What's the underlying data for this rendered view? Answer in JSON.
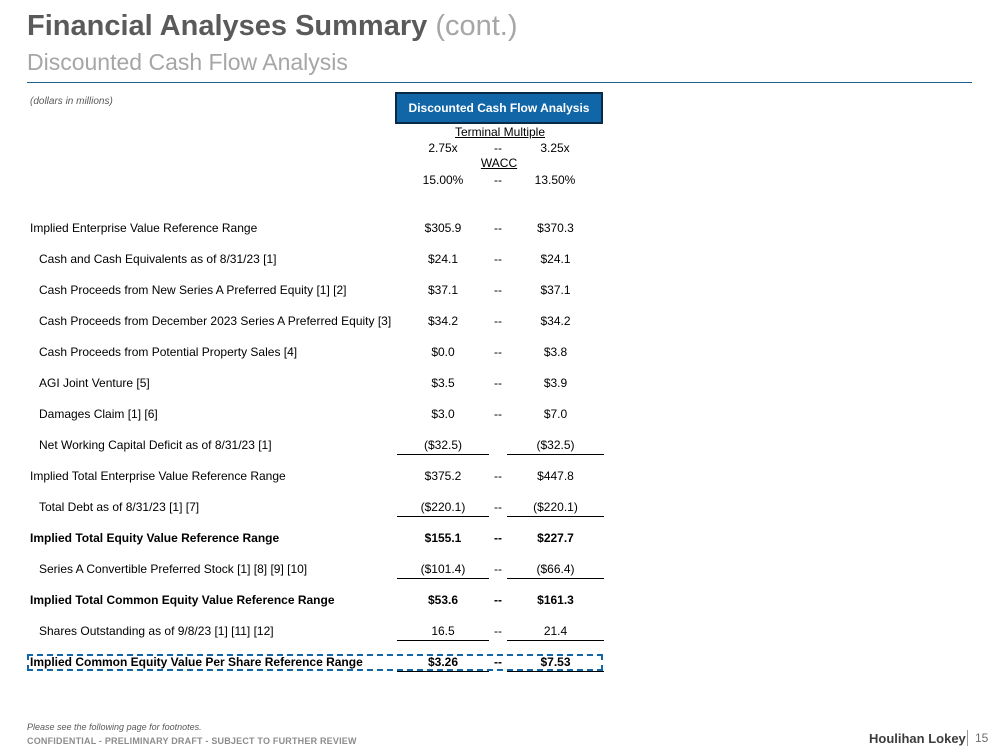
{
  "header": {
    "title": "Financial Analyses Summary",
    "title_suffix": "(cont.)",
    "subtitle": "Discounted Cash Flow Analysis"
  },
  "units_note": "(dollars in millions)",
  "dcf": {
    "header_label": "Discounted Cash Flow Analysis",
    "terminal_multiple_label": "Terminal Multiple",
    "terminal_multiple_low": "2.75x",
    "terminal_multiple_sep": "--",
    "terminal_multiple_high": "3.25x",
    "wacc_label": "WACC",
    "wacc_low": "15.00%",
    "wacc_sep": "--",
    "wacc_high": "13.50%"
  },
  "rows": [
    {
      "label": "Implied Enterprise Value Reference Range",
      "low": "$305.9",
      "sep": "--",
      "high": "$370.3"
    },
    {
      "label": "Cash and Cash Equivalents as of 8/31/23 [1]",
      "low": "$24.1",
      "sep": "--",
      "high": "$24.1"
    },
    {
      "label": "Cash Proceeds from New Series A Preferred Equity [1] [2]",
      "low": "$37.1",
      "sep": "--",
      "high": "$37.1"
    },
    {
      "label": "Cash Proceeds from December 2023 Series A Preferred Equity [3]",
      "low": "$34.2",
      "sep": "--",
      "high": "$34.2"
    },
    {
      "label": "Cash Proceeds from Potential Property Sales [4]",
      "low": "$0.0",
      "sep": "--",
      "high": "$3.8"
    },
    {
      "label": "AGI Joint Venture [5]",
      "low": "$3.5",
      "sep": "--",
      "high": "$3.9"
    },
    {
      "label": "Damages Claim [1] [6]",
      "low": "$3.0",
      "sep": "--",
      "high": "$7.0"
    },
    {
      "label": "Net Working Capital Deficit as of 8/31/23 [1]",
      "low": "($32.5)",
      "sep": "",
      "high": "($32.5)"
    },
    {
      "label": "Implied Total Enterprise Value Reference Range",
      "low": "$375.2",
      "sep": "--",
      "high": "$447.8"
    },
    {
      "label": "Total Debt as of 8/31/23 [1] [7]",
      "low": "($220.1)",
      "sep": "--",
      "high": "($220.1)"
    },
    {
      "label": "Implied Total Equity Value Reference Range",
      "low": "$155.1",
      "sep": "--",
      "high": "$227.7"
    },
    {
      "label": "Series A Convertible Preferred Stock [1] [8] [9] [10]",
      "low": "($101.4)",
      "sep": "--",
      "high": "($66.4)"
    },
    {
      "label": "Implied Total Common Equity Value Reference Range",
      "low": "$53.6",
      "sep": "--",
      "high": "$161.3"
    },
    {
      "label": "Shares Outstanding as of 9/8/23 [1] [11] [12]",
      "low": "16.5",
      "sep": "--",
      "high": "21.4"
    },
    {
      "label": "Implied Common Equity Value Per Share Reference Range",
      "low": "$3.26",
      "sep": "--",
      "high": "$7.53"
    }
  ],
  "footer": {
    "footnote_ref": "Please see the following page for footnotes.",
    "confidential": "CONFIDENTIAL - PRELIMINARY DRAFT - SUBJECT TO FURTHER REVIEW",
    "brand": "Houlihan Lokey",
    "page_number": "15"
  }
}
